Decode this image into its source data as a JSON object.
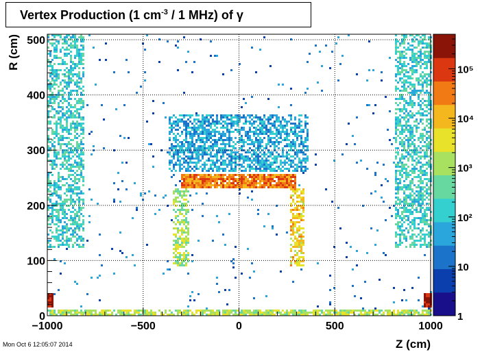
{
  "title": {
    "prefix": "Vertex Production (1 cm",
    "superscript": "-3",
    "suffix": " / 1 MHz) of  γ"
  },
  "timestamp": "Mon Oct  6 12:05:07 2014",
  "chart_data": {
    "type": "heatmap",
    "title": "Vertex Production (1 cm-3 / 1 MHz) of γ",
    "xlabel": "Z (cm)",
    "ylabel": "R (cm)",
    "xlim": [
      -1000,
      1000
    ],
    "ylim": [
      0,
      510
    ],
    "x_ticks": [
      -1000,
      -500,
      0,
      500,
      1000
    ],
    "y_ticks": [
      0,
      100,
      200,
      300,
      400,
      500
    ],
    "x_tick_labels": [
      "−1000",
      "−500",
      "0",
      "500",
      "1000"
    ],
    "y_tick_labels": [
      "0",
      "100",
      "200",
      "300",
      "400",
      "500"
    ],
    "grid": true,
    "colorbar": {
      "scale": "log",
      "range": [
        1,
        500000
      ],
      "tick_labels": [
        "1",
        "10",
        "10²",
        "10³",
        "10⁴",
        "10⁵"
      ],
      "tick_values": [
        1,
        10,
        100,
        1000,
        10000,
        100000
      ],
      "colors": [
        "#1a0f8a",
        "#0b3fae",
        "#1b74c9",
        "#2aa6dc",
        "#34d0cf",
        "#66d8a0",
        "#a8e060",
        "#e8e32a",
        "#f4b81e",
        "#f27a15",
        "#db3812",
        "#8a1408"
      ]
    },
    "regions": [
      {
        "name": "left-endcap",
        "z": [
          -1000,
          -810
        ],
        "r": [
          125,
          510
        ],
        "level": 2.2,
        "density": 0.55
      },
      {
        "name": "right-endcap",
        "z": [
          810,
          1000
        ],
        "r": [
          125,
          510
        ],
        "level": 2.2,
        "density": 0.55
      },
      {
        "name": "upper-barrel",
        "z": [
          -365,
          365
        ],
        "r": [
          262,
          365
        ],
        "level": 1.7,
        "density": 0.6
      },
      {
        "name": "barrel-top-band",
        "z": [
          -300,
          300
        ],
        "r": [
          230,
          258
        ],
        "level": 4.5,
        "density": 0.9
      },
      {
        "name": "barrel-left-wall",
        "z": [
          -345,
          -260
        ],
        "r": [
          90,
          230
        ],
        "level": 3.0,
        "density": 0.55
      },
      {
        "name": "barrel-right-wall",
        "z": [
          260,
          345
        ],
        "r": [
          90,
          230
        ],
        "level": 3.8,
        "density": 0.6
      },
      {
        "name": "forward-left-hot",
        "z": [
          -1000,
          -965
        ],
        "r": [
          15,
          40
        ],
        "level": 5.4,
        "density": 1.0
      },
      {
        "name": "forward-right-hot",
        "z": [
          965,
          1000
        ],
        "r": [
          15,
          40
        ],
        "level": 5.4,
        "density": 1.0
      },
      {
        "name": "beamline",
        "z": [
          -1000,
          1000
        ],
        "r": [
          0,
          12
        ],
        "level": 3.2,
        "density": 0.75
      },
      {
        "name": "background",
        "z": [
          -1000,
          1000
        ],
        "r": [
          0,
          510
        ],
        "level": 1.2,
        "density": 0.018
      }
    ]
  }
}
